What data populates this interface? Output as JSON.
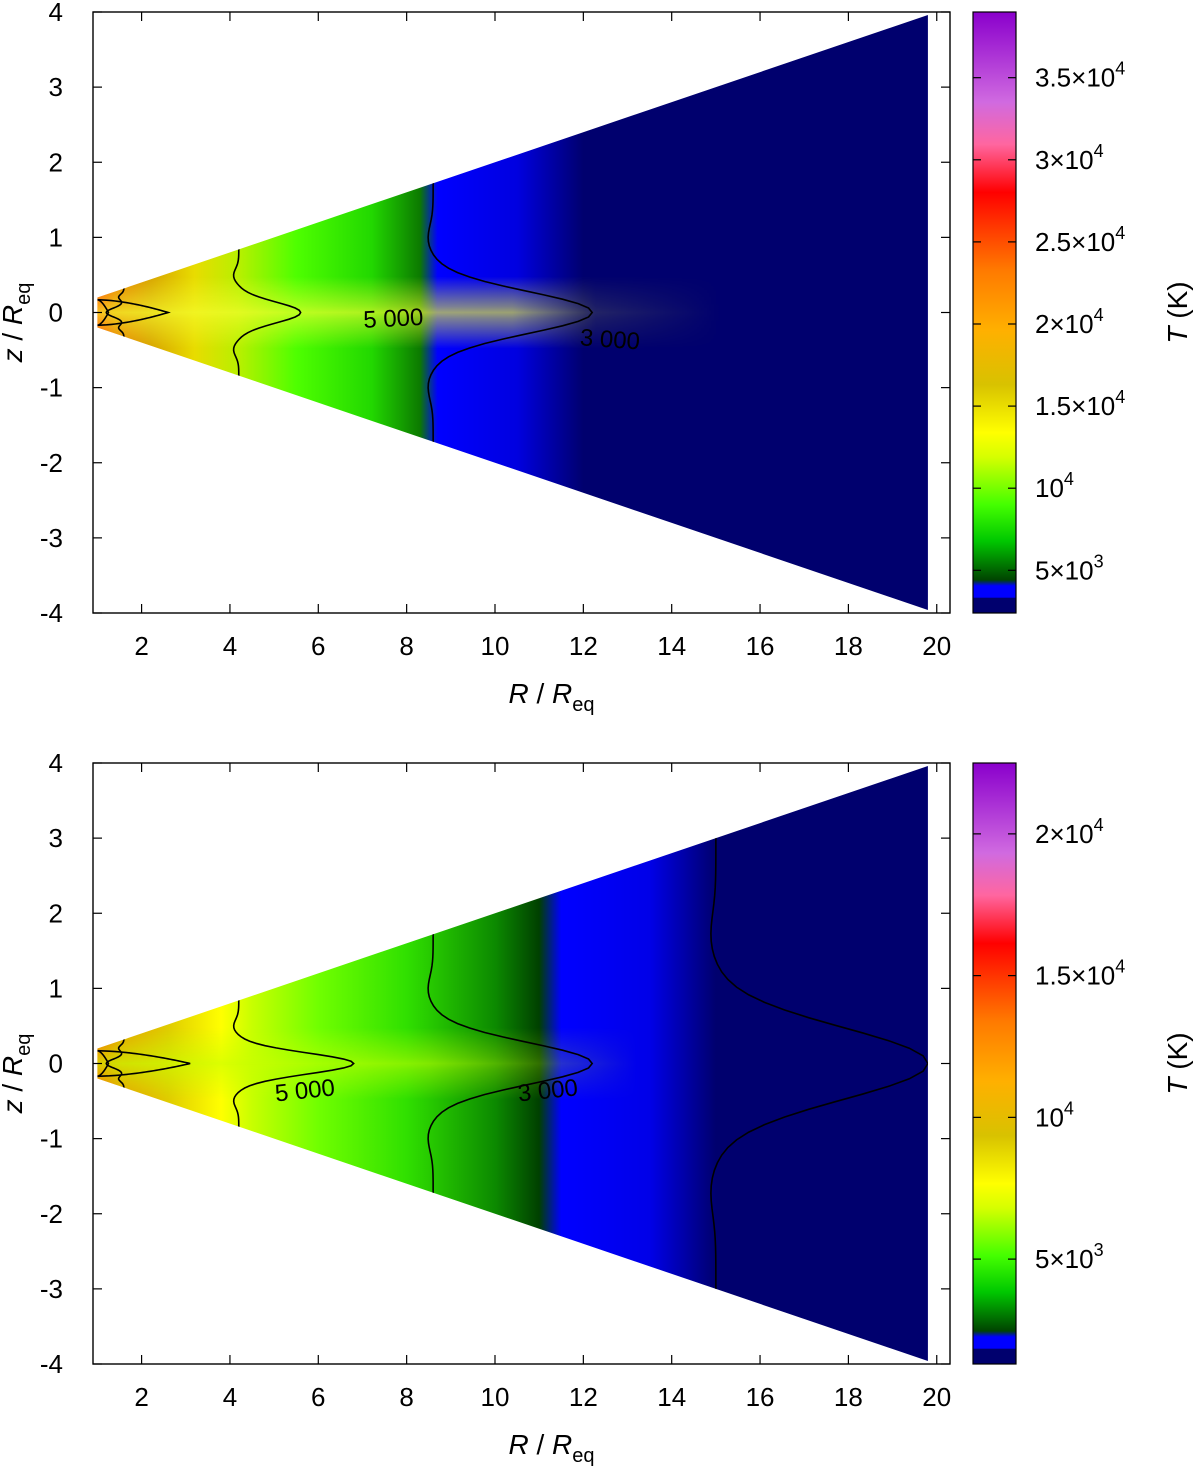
{
  "chart_data": [
    {
      "type": "heatmap",
      "panel": "top",
      "xlabel": "R",
      "xlabel_sub": "eq",
      "xlabel_denominator": "R",
      "ylabel": "z",
      "ylabel_sub": "eq",
      "ylabel_denominator": "R",
      "xlim": [
        0.9,
        20.3
      ],
      "ylim": [
        -4,
        4
      ],
      "x_ticks": [
        "2",
        "4",
        "6",
        "8",
        "10",
        "12",
        "14",
        "16",
        "18",
        "20"
      ],
      "y_ticks": [
        "4",
        "3",
        "2",
        "1",
        "0",
        "-1",
        "-2",
        "-3",
        "-4"
      ],
      "colorbar": {
        "label": "T",
        "unit": "(K)",
        "range": [
          2400,
          39000
        ],
        "ticks": [
          {
            "value": 35000,
            "mantissa": "3.5×10",
            "exp": "4"
          },
          {
            "value": 30000,
            "mantissa": "3×10",
            "exp": "4"
          },
          {
            "value": 25000,
            "mantissa": "2.5×10",
            "exp": "4"
          },
          {
            "value": 20000,
            "mantissa": "2×10",
            "exp": "4"
          },
          {
            "value": 15000,
            "mantissa": "1.5×10",
            "exp": "4"
          },
          {
            "value": 10000,
            "mantissa": "10",
            "exp": "4"
          },
          {
            "value": 5000,
            "mantissa": "5×10",
            "exp": "3"
          }
        ]
      },
      "disk_opening": 0.2,
      "contours": [
        {
          "level": 5000,
          "label": "5 000",
          "label_at": [
            7.7,
            -0.1
          ]
        },
        {
          "level": 3000,
          "label": "3 000",
          "label_at": [
            12.6,
            -0.38
          ]
        }
      ],
      "contour_params": {
        "t5_mid": 5.6,
        "t5_edge": 4.2,
        "t3_mid": 12.2,
        "t3_edge": 8.6,
        "outer_mid": null,
        "outer_edge": null,
        "core_mid": 2.6,
        "inner_mid": 1.6
      }
    },
    {
      "type": "heatmap",
      "panel": "bottom",
      "xlabel": "R",
      "xlabel_sub": "eq",
      "xlabel_denominator": "R",
      "ylabel": "z",
      "ylabel_sub": "eq",
      "ylabel_denominator": "R",
      "xlim": [
        0.9,
        20.3
      ],
      "ylim": [
        -4,
        4
      ],
      "x_ticks": [
        "2",
        "4",
        "6",
        "8",
        "10",
        "12",
        "14",
        "16",
        "18",
        "20"
      ],
      "y_ticks": [
        "4",
        "3",
        "2",
        "1",
        "0",
        "-1",
        "-2",
        "-3",
        "-4"
      ],
      "colorbar": {
        "label": "T",
        "unit": "(K)",
        "range": [
          1300,
          22500
        ],
        "ticks": [
          {
            "value": 20000,
            "mantissa": "2×10",
            "exp": "4"
          },
          {
            "value": 15000,
            "mantissa": "1.5×10",
            "exp": "4"
          },
          {
            "value": 10000,
            "mantissa": "10",
            "exp": "4"
          },
          {
            "value": 5000,
            "mantissa": "5×10",
            "exp": "3"
          }
        ]
      },
      "disk_opening": 0.2,
      "contours": [
        {
          "level": 5000,
          "label": "5 000",
          "label_at": [
            5.7,
            -0.38
          ]
        },
        {
          "level": 3000,
          "label": "3 000",
          "label_at": [
            11.2,
            -0.38
          ]
        }
      ],
      "contour_params": {
        "t5_mid": 6.8,
        "t5_edge": 4.2,
        "t3_mid": 12.2,
        "t3_edge": 8.6,
        "outer_mid": 19.8,
        "outer_edge": 15.0,
        "core_mid": 3.1,
        "inner_mid": 1.6
      }
    }
  ]
}
